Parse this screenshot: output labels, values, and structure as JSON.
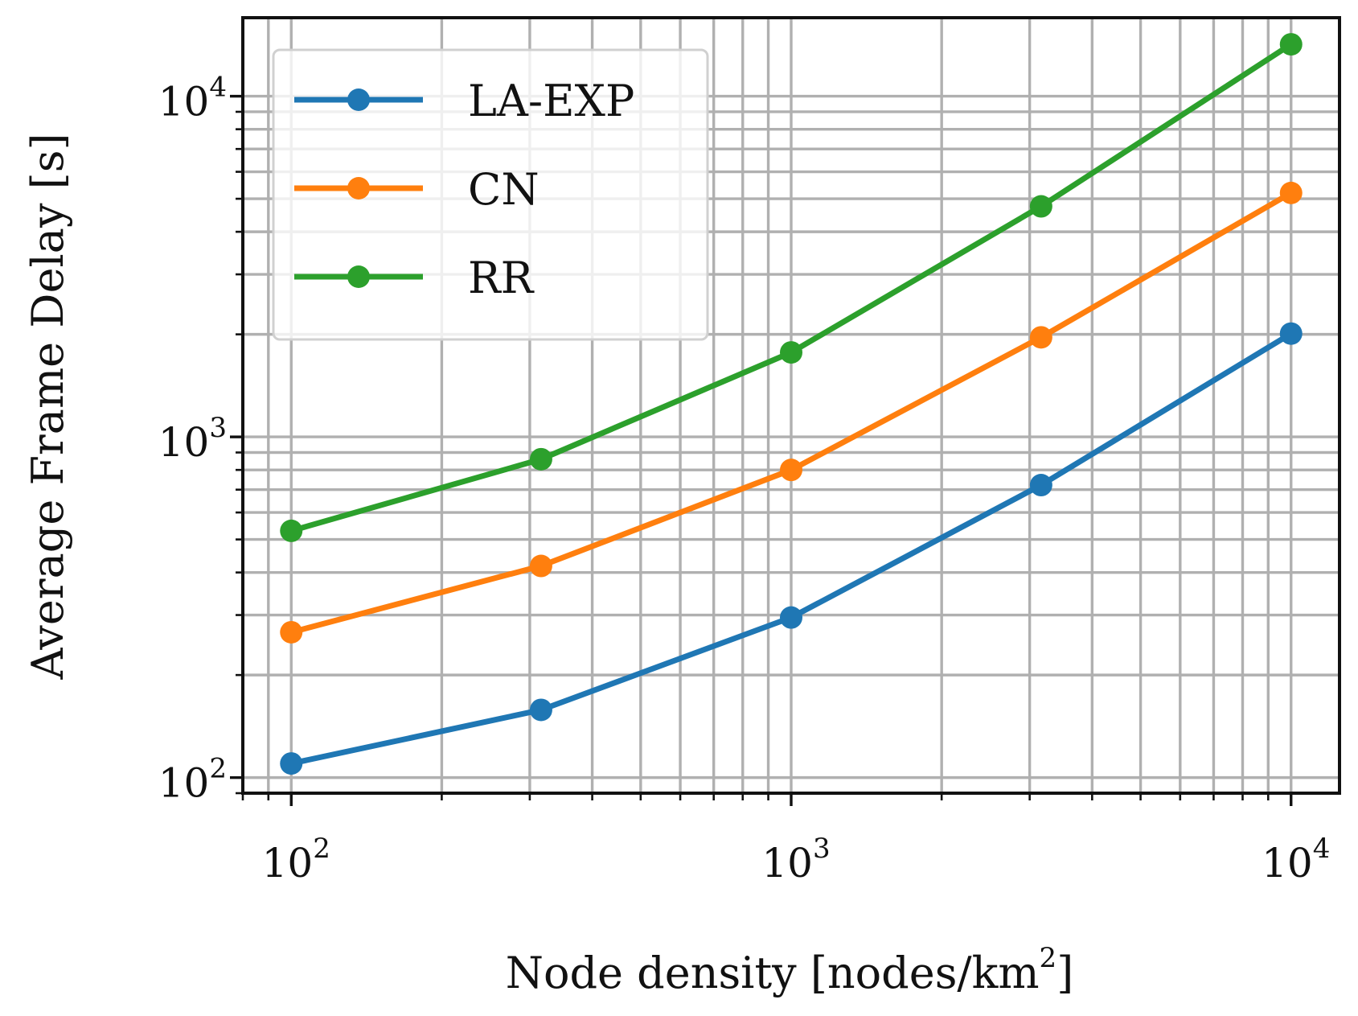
{
  "chart_data": {
    "type": "line",
    "title": "",
    "xlabel": "Node density [nodes/km",
    "xlabel_sup": "2",
    "xlabel_suffix": "]",
    "ylabel": "Average Frame Delay [s]",
    "xscale": "log",
    "yscale": "log",
    "xlim": [
      80,
      12500
    ],
    "ylim": [
      90,
      17000
    ],
    "grid": "major and minor",
    "legend_position": "upper-left",
    "x": [
      100,
      316,
      1000,
      3162,
      10000
    ],
    "series": [
      {
        "name": "LA-EXP",
        "color": "#1f77b4",
        "values": [
          110,
          158,
          295,
          722,
          2010
        ]
      },
      {
        "name": "CN",
        "color": "#ff7f0e",
        "values": [
          267,
          418,
          800,
          1960,
          5200
        ]
      },
      {
        "name": "RR",
        "color": "#2ca02c",
        "values": [
          530,
          860,
          1770,
          4750,
          14200
        ]
      }
    ],
    "x_ticks": [
      {
        "value": 100,
        "base": "10",
        "exp": "2"
      },
      {
        "value": 1000,
        "base": "10",
        "exp": "3"
      },
      {
        "value": 10000,
        "base": "10",
        "exp": "4"
      }
    ],
    "y_ticks": [
      {
        "value": 100,
        "base": "10",
        "exp": "2"
      },
      {
        "value": 1000,
        "base": "10",
        "exp": "3"
      },
      {
        "value": 10000,
        "base": "10",
        "exp": "4"
      }
    ]
  }
}
